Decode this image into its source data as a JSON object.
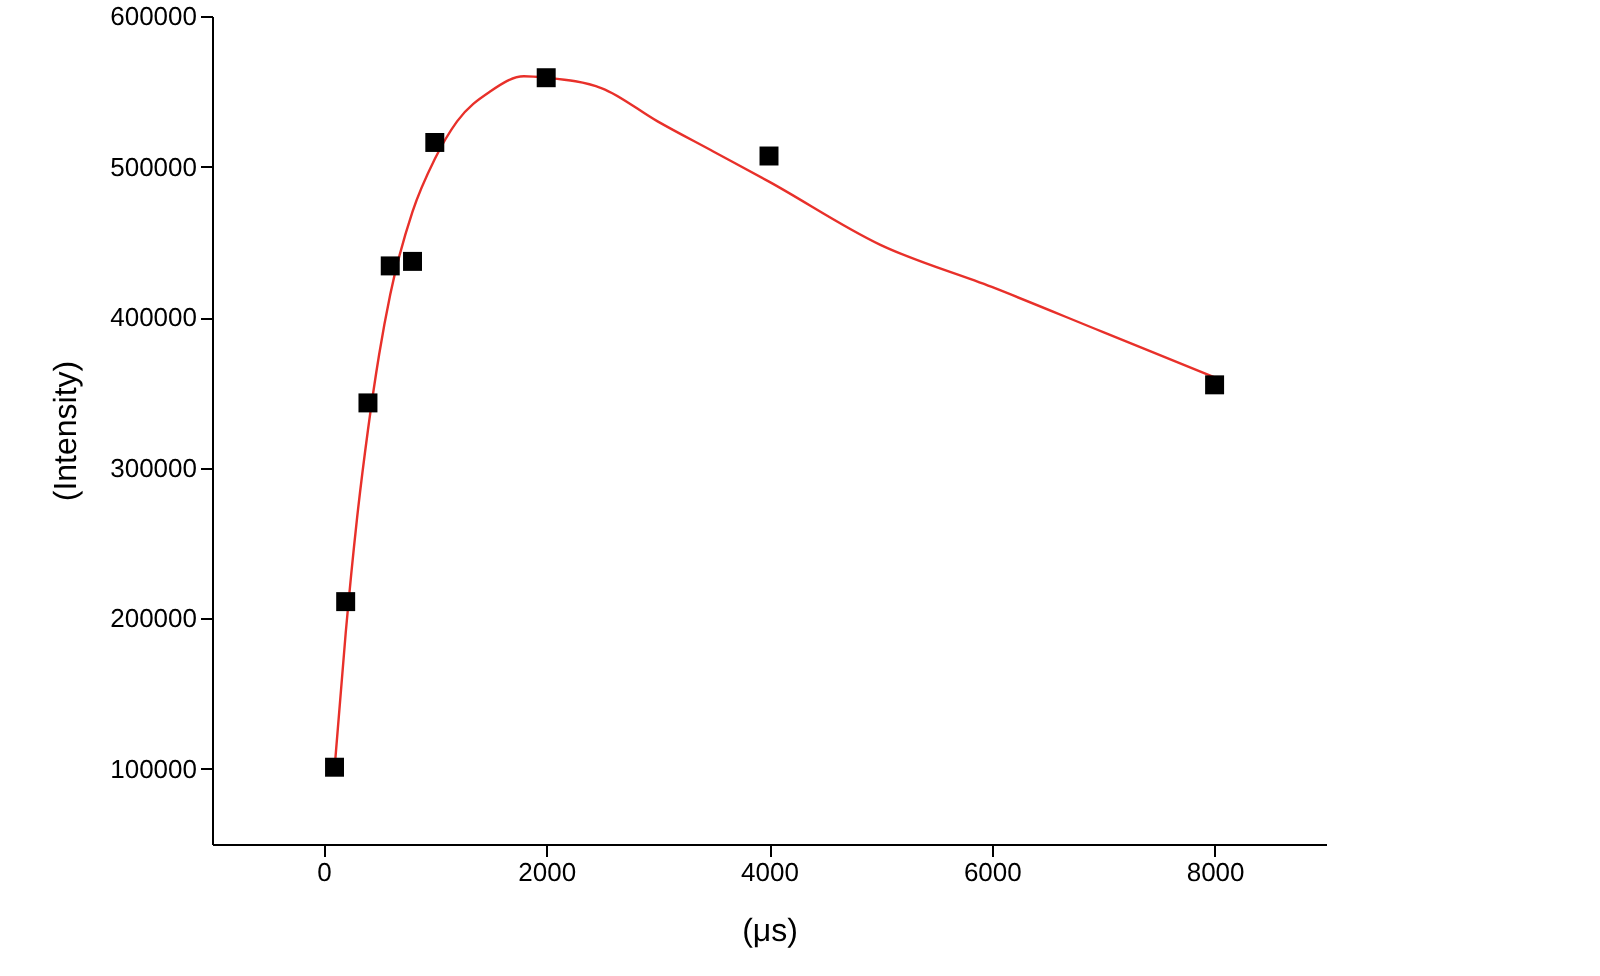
{
  "chart_data": {
    "type": "scatter",
    "xlabel": "(μs)",
    "ylabel": "(Intensity)",
    "xlim": [
      -1000,
      9000
    ],
    "ylim": [
      50000,
      600000
    ],
    "xticks": [
      0,
      2000,
      4000,
      6000,
      8000
    ],
    "yticks": [
      100000,
      200000,
      300000,
      400000,
      500000,
      600000
    ],
    "series": [
      {
        "marker": "square",
        "color": "#000000",
        "x": [
          100,
          200,
          400,
          600,
          800,
          1000,
          2000,
          4000,
          8000
        ],
        "values": [
          101000,
          211000,
          343000,
          434000,
          437000,
          516000,
          559000,
          507000,
          355000
        ]
      },
      {
        "type": "line",
        "line_style": "solid",
        "color": "#e8302a",
        "x": [
          100,
          200,
          300,
          400,
          500,
          600,
          800,
          1000,
          1200,
          1500,
          1800,
          2000,
          2500,
          3000,
          3500,
          4000,
          5000,
          6000,
          7000,
          8000
        ],
        "values": [
          100000,
          190000,
          265000,
          325000,
          375000,
          415000,
          470000,
          505000,
          530000,
          550000,
          560000,
          559000,
          552000,
          530000,
          510000,
          490000,
          448000,
          420000,
          390000,
          360000
        ]
      }
    ]
  }
}
